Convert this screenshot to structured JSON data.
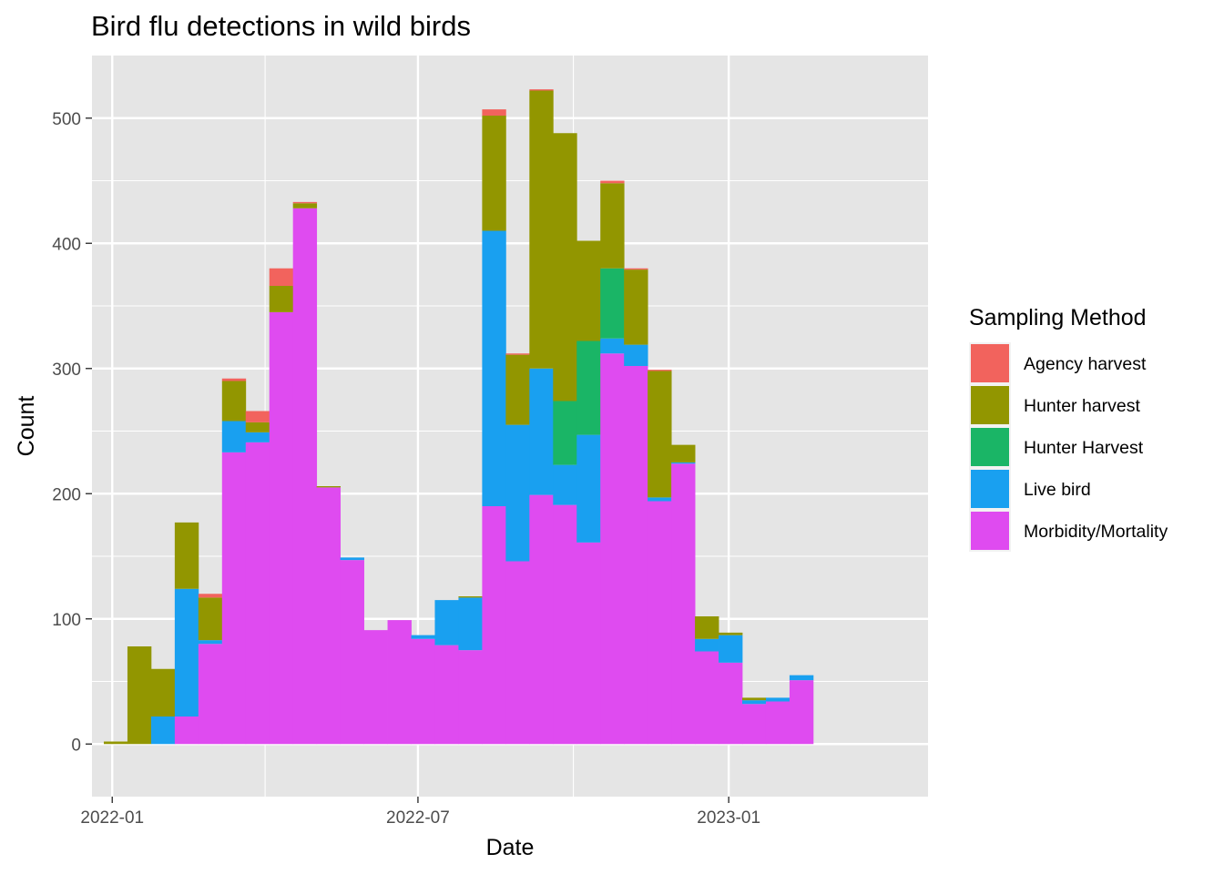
{
  "chart_data": {
    "type": "bar",
    "stacked": true,
    "title": "Bird flu detections in wild birds",
    "xlabel": "Date",
    "ylabel": "Count",
    "ylim": [
      -42,
      550
    ],
    "yticks": [
      0,
      100,
      200,
      300,
      400,
      500
    ],
    "xtick_labels": [
      "2022-01",
      "2022-07",
      "2023-01"
    ],
    "xticks": [
      "2022-01-01",
      "2022-07-01",
      "2023-01-01"
    ],
    "xlim": [
      "2021-12-20",
      "2023-04-29"
    ],
    "bin_width_days": 14,
    "grid": true,
    "background": "#e5e5e5",
    "legend": {
      "title": "Sampling Method",
      "placement": "right"
    },
    "series": [
      {
        "name": "Morbidity/Mortality",
        "color": "#df4bf0"
      },
      {
        "name": "Live bird",
        "color": "#19a0f0"
      },
      {
        "name": "Hunter Harvest",
        "color": "#1ab566"
      },
      {
        "name": "Hunter harvest",
        "color": "#929600"
      },
      {
        "name": "Agency harvest",
        "color": "#f2635d"
      }
    ],
    "legend_order": [
      "Agency harvest",
      "Hunter harvest",
      "Hunter Harvest",
      "Live bird",
      "Morbidity/Mortality"
    ],
    "bins": [
      {
        "start": "2021-12-27",
        "Morbidity/Mortality": 0,
        "Live bird": 0,
        "Hunter Harvest": 0,
        "Hunter harvest": 2,
        "Agency harvest": 0
      },
      {
        "start": "2022-01-10",
        "Morbidity/Mortality": 0,
        "Live bird": 0,
        "Hunter Harvest": 0,
        "Hunter harvest": 78,
        "Agency harvest": 0
      },
      {
        "start": "2022-01-24",
        "Morbidity/Mortality": 0,
        "Live bird": 22,
        "Hunter Harvest": 0,
        "Hunter harvest": 38,
        "Agency harvest": 0
      },
      {
        "start": "2022-02-07",
        "Morbidity/Mortality": 22,
        "Live bird": 102,
        "Hunter Harvest": 0,
        "Hunter harvest": 53,
        "Agency harvest": 0
      },
      {
        "start": "2022-02-21",
        "Morbidity/Mortality": 80,
        "Live bird": 3,
        "Hunter Harvest": 0,
        "Hunter harvest": 34,
        "Agency harvest": 3
      },
      {
        "start": "2022-03-07",
        "Morbidity/Mortality": 233,
        "Live bird": 25,
        "Hunter Harvest": 0,
        "Hunter harvest": 32,
        "Agency harvest": 2
      },
      {
        "start": "2022-03-21",
        "Morbidity/Mortality": 241,
        "Live bird": 8,
        "Hunter Harvest": 0,
        "Hunter harvest": 8,
        "Agency harvest": 9
      },
      {
        "start": "2022-04-04",
        "Morbidity/Mortality": 345,
        "Live bird": 0,
        "Hunter Harvest": 0,
        "Hunter harvest": 21,
        "Agency harvest": 14
      },
      {
        "start": "2022-04-18",
        "Morbidity/Mortality": 428,
        "Live bird": 0,
        "Hunter Harvest": 0,
        "Hunter harvest": 4,
        "Agency harvest": 1
      },
      {
        "start": "2022-05-02",
        "Morbidity/Mortality": 205,
        "Live bird": 0,
        "Hunter Harvest": 0,
        "Hunter harvest": 1,
        "Agency harvest": 0
      },
      {
        "start": "2022-05-16",
        "Morbidity/Mortality": 147,
        "Live bird": 2,
        "Hunter Harvest": 0,
        "Hunter harvest": 0,
        "Agency harvest": 0
      },
      {
        "start": "2022-05-30",
        "Morbidity/Mortality": 91,
        "Live bird": 0,
        "Hunter Harvest": 0,
        "Hunter harvest": 0,
        "Agency harvest": 0
      },
      {
        "start": "2022-06-13",
        "Morbidity/Mortality": 99,
        "Live bird": 0,
        "Hunter Harvest": 0,
        "Hunter harvest": 0,
        "Agency harvest": 0
      },
      {
        "start": "2022-06-27",
        "Morbidity/Mortality": 84,
        "Live bird": 3,
        "Hunter Harvest": 0,
        "Hunter harvest": 0,
        "Agency harvest": 0
      },
      {
        "start": "2022-07-11",
        "Morbidity/Mortality": 79,
        "Live bird": 36,
        "Hunter Harvest": 0,
        "Hunter harvest": 0,
        "Agency harvest": 0
      },
      {
        "start": "2022-07-25",
        "Morbidity/Mortality": 75,
        "Live bird": 42,
        "Hunter Harvest": 0,
        "Hunter harvest": 1,
        "Agency harvest": 0
      },
      {
        "start": "2022-08-08",
        "Morbidity/Mortality": 190,
        "Live bird": 220,
        "Hunter Harvest": 0,
        "Hunter harvest": 92,
        "Agency harvest": 5
      },
      {
        "start": "2022-08-22",
        "Morbidity/Mortality": 146,
        "Live bird": 109,
        "Hunter Harvest": 0,
        "Hunter harvest": 56,
        "Agency harvest": 1
      },
      {
        "start": "2022-09-05",
        "Morbidity/Mortality": 199,
        "Live bird": 101,
        "Hunter Harvest": 0,
        "Hunter harvest": 222,
        "Agency harvest": 1
      },
      {
        "start": "2022-09-19",
        "Morbidity/Mortality": 191,
        "Live bird": 32,
        "Hunter Harvest": 51,
        "Hunter harvest": 214,
        "Agency harvest": 0
      },
      {
        "start": "2022-10-03",
        "Morbidity/Mortality": 161,
        "Live bird": 86,
        "Hunter Harvest": 75,
        "Hunter harvest": 80,
        "Agency harvest": 0
      },
      {
        "start": "2022-10-17",
        "Morbidity/Mortality": 312,
        "Live bird": 12,
        "Hunter Harvest": 56,
        "Hunter harvest": 68,
        "Agency harvest": 2
      },
      {
        "start": "2022-10-31",
        "Morbidity/Mortality": 302,
        "Live bird": 17,
        "Hunter Harvest": 0,
        "Hunter harvest": 60,
        "Agency harvest": 1
      },
      {
        "start": "2022-11-14",
        "Morbidity/Mortality": 194,
        "Live bird": 3,
        "Hunter Harvest": 0,
        "Hunter harvest": 101,
        "Agency harvest": 1
      },
      {
        "start": "2022-11-28",
        "Morbidity/Mortality": 224,
        "Live bird": 1,
        "Hunter Harvest": 0,
        "Hunter harvest": 14,
        "Agency harvest": 0
      },
      {
        "start": "2022-12-12",
        "Morbidity/Mortality": 74,
        "Live bird": 10,
        "Hunter Harvest": 0,
        "Hunter harvest": 18,
        "Agency harvest": 0
      },
      {
        "start": "2022-12-26",
        "Morbidity/Mortality": 65,
        "Live bird": 22,
        "Hunter Harvest": 0,
        "Hunter harvest": 2,
        "Agency harvest": 0
      },
      {
        "start": "2023-01-09",
        "Morbidity/Mortality": 32,
        "Live bird": 3,
        "Hunter Harvest": 0,
        "Hunter harvest": 2,
        "Agency harvest": 0
      },
      {
        "start": "2023-01-23",
        "Morbidity/Mortality": 34,
        "Live bird": 3,
        "Hunter Harvest": 0,
        "Hunter harvest": 0,
        "Agency harvest": 0
      },
      {
        "start": "2023-02-06",
        "Morbidity/Mortality": 51,
        "Live bird": 4,
        "Hunter Harvest": 0,
        "Hunter harvest": 0,
        "Agency harvest": 0
      }
    ]
  }
}
